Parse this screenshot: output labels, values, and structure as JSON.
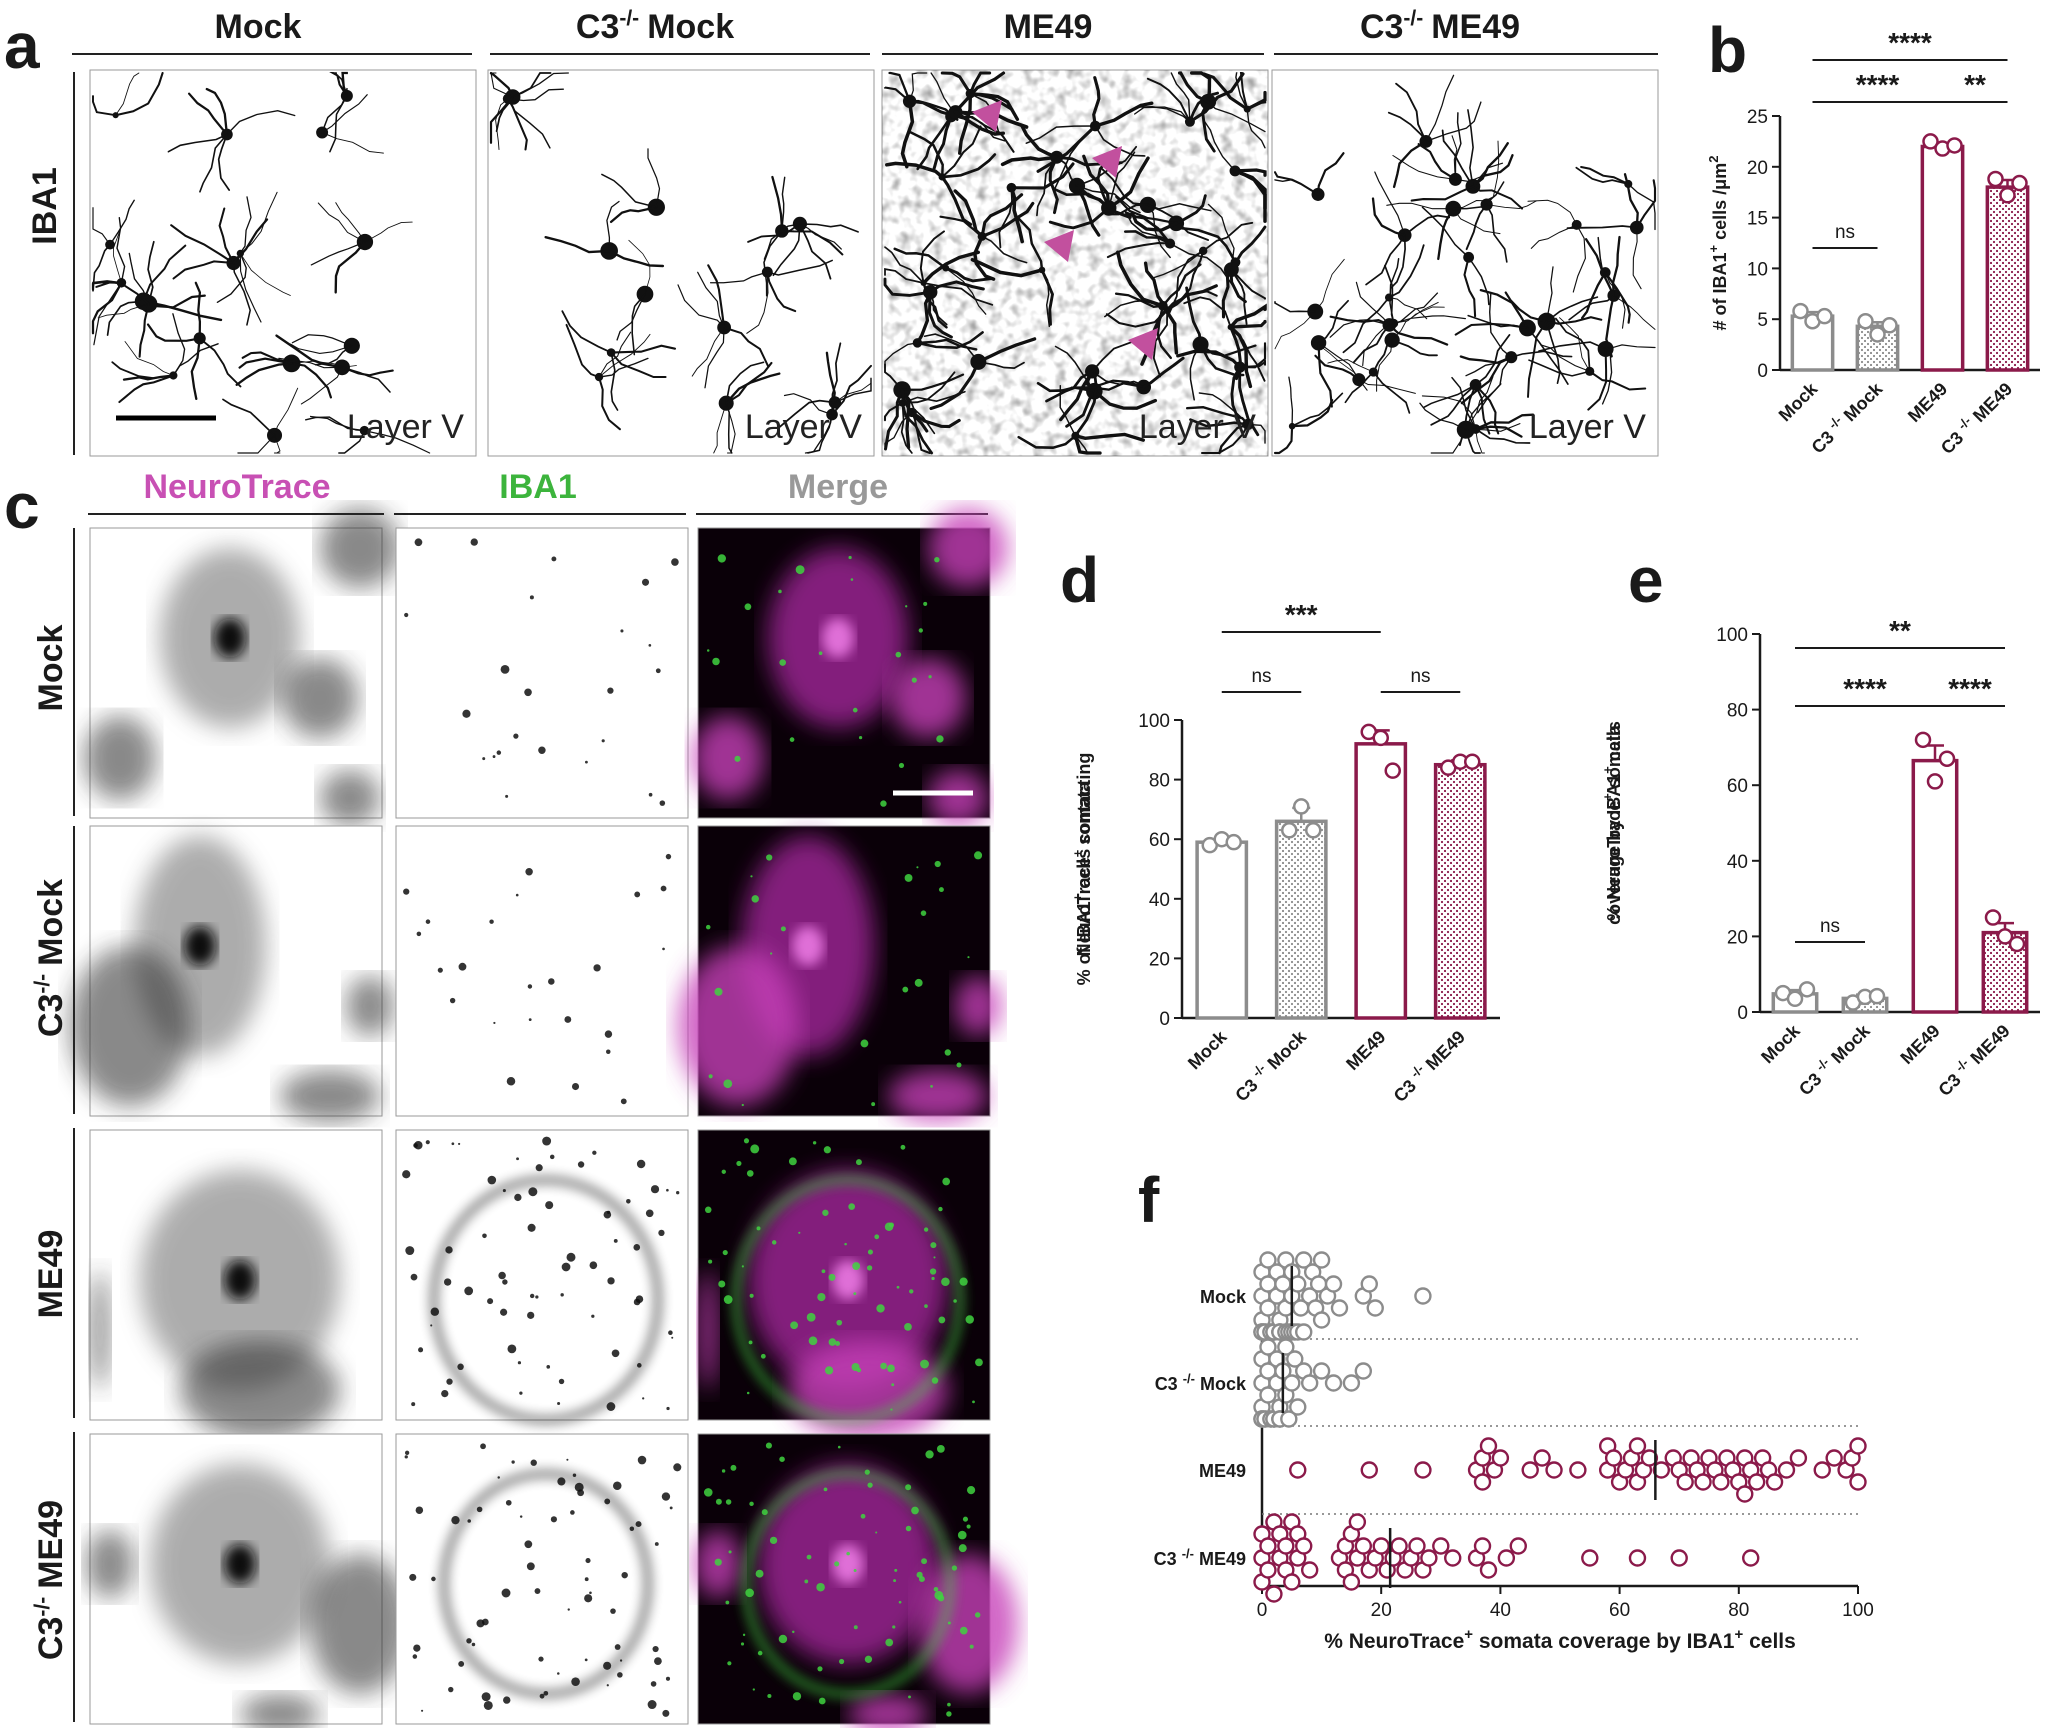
{
  "colors": {
    "mock": "#8c8c8c",
    "me49": "#8b1a4a",
    "neurotrace": "#c850b4",
    "iba1": "#3cb43c",
    "merge": "#999999",
    "arrow": "#c2509e"
  },
  "panel_a": {
    "letter": "a",
    "row_label": "IBA1",
    "columns": [
      "Mock",
      "C3",
      "-/-",
      "Mock",
      "ME49",
      "C3",
      "-/-",
      "ME49"
    ],
    "layer_label": "Layer V"
  },
  "panel_c": {
    "letter": "c",
    "channels": [
      "NeuroTrace",
      "IBA1",
      "Merge"
    ],
    "rows": [
      "Mock",
      "C3",
      "-/-",
      "Mock",
      "ME49",
      "C3",
      "-/-",
      "ME49"
    ]
  },
  "panels": {
    "b": {
      "letter": "b"
    },
    "d": {
      "letter": "d"
    },
    "e": {
      "letter": "e"
    },
    "f": {
      "letter": "f"
    }
  },
  "chart_data": [
    {
      "id": "b",
      "type": "bar",
      "ylabel_parts": [
        "# of IBA1",
        "+",
        " cells /",
        "μm",
        "2"
      ],
      "categories": [
        "Mock",
        "C3 -/- Mock",
        "ME49",
        "C3 -/- ME49"
      ],
      "values": [
        5.3,
        4.3,
        22.0,
        18.0
      ],
      "errors": [
        0.4,
        0.4,
        0.3,
        0.7
      ],
      "points": [
        [
          5.8,
          4.8,
          5.3
        ],
        [
          4.8,
          3.5,
          4.4
        ],
        [
          22.5,
          21.8,
          22.1
        ],
        [
          18.8,
          17.2,
          18.4
        ]
      ],
      "ylim": [
        0,
        25
      ],
      "yticks": [
        0,
        5,
        10,
        15,
        20,
        25
      ],
      "fills": [
        "open",
        "dotted",
        "open",
        "dotted"
      ],
      "significance": [
        {
          "from": 0,
          "to": 1,
          "label": "ns"
        },
        {
          "from": 0,
          "to": 2,
          "label": "****"
        },
        {
          "from": 2,
          "to": 3,
          "label": "**"
        },
        {
          "from": 0,
          "to": 3,
          "label": "****"
        }
      ]
    },
    {
      "id": "d",
      "type": "bar",
      "ylabel_parts": [
        "% of IBA1",
        "+",
        " cells contacting",
        "NeuroTrace",
        "+",
        " somata"
      ],
      "categories": [
        "Mock",
        "C3 -/- Mock",
        "ME49",
        "C3 -/- ME49"
      ],
      "values": [
        59,
        66,
        92,
        85
      ],
      "errors": [
        1,
        4.5,
        4.5,
        1.5
      ],
      "points": [
        [
          58,
          60,
          59
        ],
        [
          63,
          71,
          63
        ],
        [
          96,
          94,
          83
        ],
        [
          84,
          86,
          86
        ]
      ],
      "ylim": [
        0,
        100
      ],
      "yticks": [
        0,
        20,
        40,
        60,
        80,
        100
      ],
      "fills": [
        "open",
        "dotted",
        "open",
        "dotted"
      ],
      "significance": [
        {
          "from": 0,
          "to": 1,
          "label": "ns"
        },
        {
          "from": 2,
          "to": 3,
          "label": "ns"
        },
        {
          "from": 0,
          "to": 2,
          "label": "***"
        }
      ]
    },
    {
      "id": "e",
      "type": "bar",
      "ylabel_parts": [
        "% NeuroTrace",
        "+",
        " somata",
        "coverage by IBA1",
        "+",
        " cells"
      ],
      "categories": [
        "Mock",
        "C3 -/- Mock",
        "ME49",
        "C3 -/- ME49"
      ],
      "values": [
        4.8,
        3.6,
        66.5,
        21
      ],
      "errors": [
        1,
        1,
        4,
        2.5
      ],
      "points": [
        [
          5,
          3.5,
          6
        ],
        [
          2.5,
          4,
          4.2
        ],
        [
          72,
          61,
          67
        ],
        [
          25,
          20,
          18
        ]
      ],
      "ylim": [
        0,
        100
      ],
      "yticks": [
        0,
        20,
        40,
        60,
        80,
        100
      ],
      "fills": [
        "open",
        "dotted",
        "open",
        "dotted"
      ],
      "significance": [
        {
          "from": 0,
          "to": 1,
          "label": "ns"
        },
        {
          "from": 0,
          "to": 2,
          "label": "****"
        },
        {
          "from": 2,
          "to": 3,
          "label": "****"
        },
        {
          "from": 0,
          "to": 3,
          "label": "**"
        }
      ]
    },
    {
      "id": "f",
      "type": "scatter",
      "xlabel_parts": [
        "% NeuroTrace",
        "+",
        " somata coverage by IBA1",
        "+",
        " cells"
      ],
      "xlim": [
        0,
        100
      ],
      "xticks": [
        0,
        20,
        40,
        60,
        80,
        100
      ],
      "groups": [
        {
          "label": "Mock",
          "median": 5,
          "color": "mock",
          "values": [
            0,
            0,
            0,
            0,
            0,
            0,
            0.5,
            0.5,
            1,
            1,
            1,
            1.5,
            1.5,
            2,
            2,
            2,
            2.5,
            2.5,
            3,
            3,
            3,
            3,
            3.5,
            4,
            4,
            4,
            4.5,
            5,
            5,
            5,
            5.5,
            6,
            6,
            6.5,
            7,
            7,
            8,
            8.5,
            9,
            9.5,
            10,
            10,
            11,
            12,
            13,
            17,
            18,
            19,
            27
          ]
        },
        {
          "label": "C3 -/- Mock",
          "median": 3.5,
          "color": "mock",
          "values": [
            0,
            0,
            0,
            0,
            0,
            0,
            0.5,
            0.5,
            1,
            1,
            1,
            1.5,
            1.5,
            2,
            2,
            2,
            2.5,
            2.5,
            3,
            3,
            3,
            3,
            3.5,
            4,
            4,
            4.5,
            5,
            5.5,
            6,
            7,
            8,
            10,
            12,
            15,
            17
          ]
        },
        {
          "label": "ME49",
          "median": 66,
          "color": "me49",
          "values": [
            6,
            18,
            27,
            36,
            37,
            37,
            38,
            39,
            40,
            45,
            47,
            49,
            53,
            58,
            58,
            59,
            60,
            61,
            62,
            63,
            63,
            64,
            65,
            67,
            69,
            70,
            71,
            72,
            73,
            74,
            75,
            76,
            77,
            78,
            79,
            80,
            81,
            81,
            82,
            83,
            84,
            85,
            86,
            88,
            90,
            94,
            96,
            98,
            99,
            100,
            100
          ]
        },
        {
          "label": "C3 -/- ME49",
          "median": 21.5,
          "color": "me49",
          "values": [
            0,
            0,
            0,
            1,
            1,
            2,
            2,
            3,
            3,
            4,
            4,
            5,
            5,
            6,
            6,
            7,
            8,
            13,
            14,
            14,
            15,
            15,
            16,
            16,
            17,
            18,
            19,
            20,
            21,
            22,
            23,
            24,
            25,
            26,
            27,
            28,
            30,
            32,
            36,
            37,
            38,
            41,
            43,
            55,
            63,
            70,
            82
          ]
        }
      ]
    }
  ]
}
